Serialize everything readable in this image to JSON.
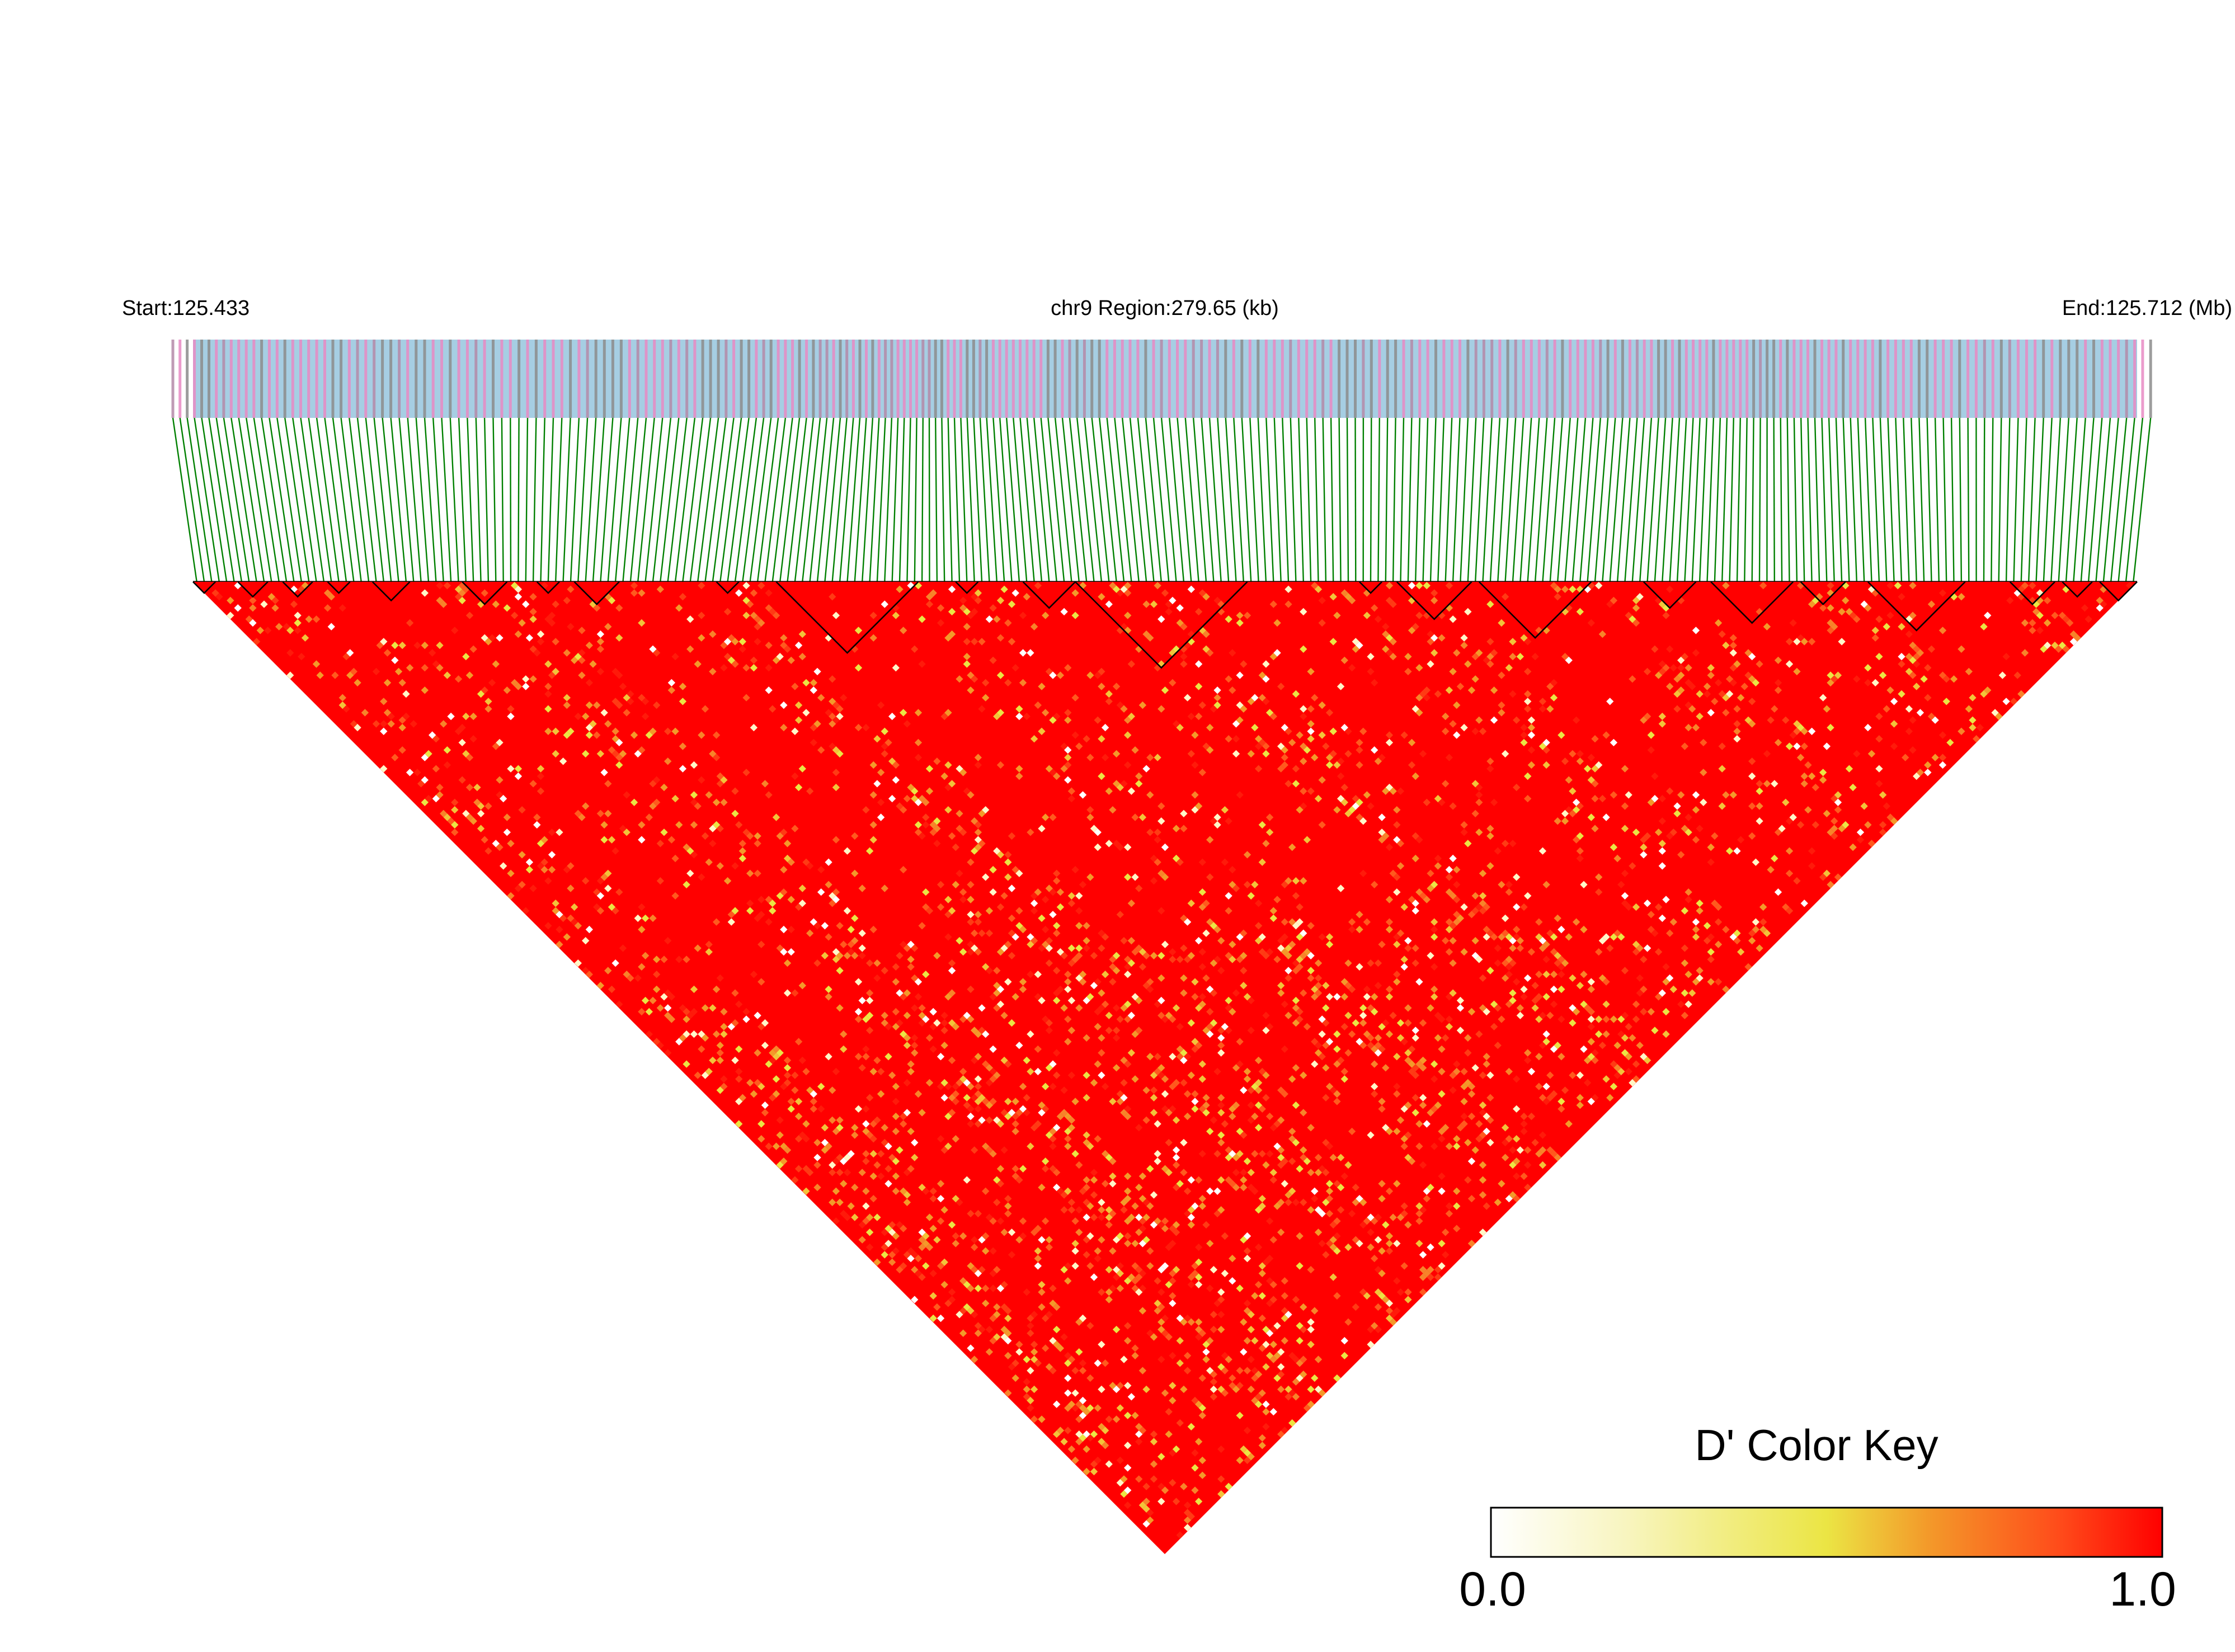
{
  "header": {
    "start_label": "Start:125.433",
    "region_label": "chr9 Region:279.65 (kb)",
    "end_label": "End:125.712 (Mb)"
  },
  "colors": {
    "track_background": "#a6cee3",
    "track_pink": "#e78ac3",
    "track_gray": "#8c8c8c",
    "connector_green": "#008000",
    "ld_red": "#ff0000",
    "ld_orange": "#f39a2a",
    "ld_yellow": "#ebe544",
    "ld_white": "#ffffff",
    "block_outline": "#000000"
  },
  "chart_data": {
    "type": "heatmap",
    "description_type": "LD triangle heatmap (pairwise D')",
    "chromosome": "chr9",
    "start_mb": 125.433,
    "end_mb": 125.712,
    "region_kb": 279.65,
    "value_range": [
      0.0,
      1.0
    ],
    "predominant_value": "high D' (near 1.0) across most SNP pairs",
    "haplotype_blocks_outlined": true
  },
  "color_key": {
    "title": "D' Color Key",
    "min_label": "0.0",
    "max_label": "1.0",
    "stops": [
      "#ffffff",
      "#f6f2a8",
      "#ebe544",
      "#f39a2a",
      "#ff4a1a",
      "#ff0000"
    ]
  }
}
